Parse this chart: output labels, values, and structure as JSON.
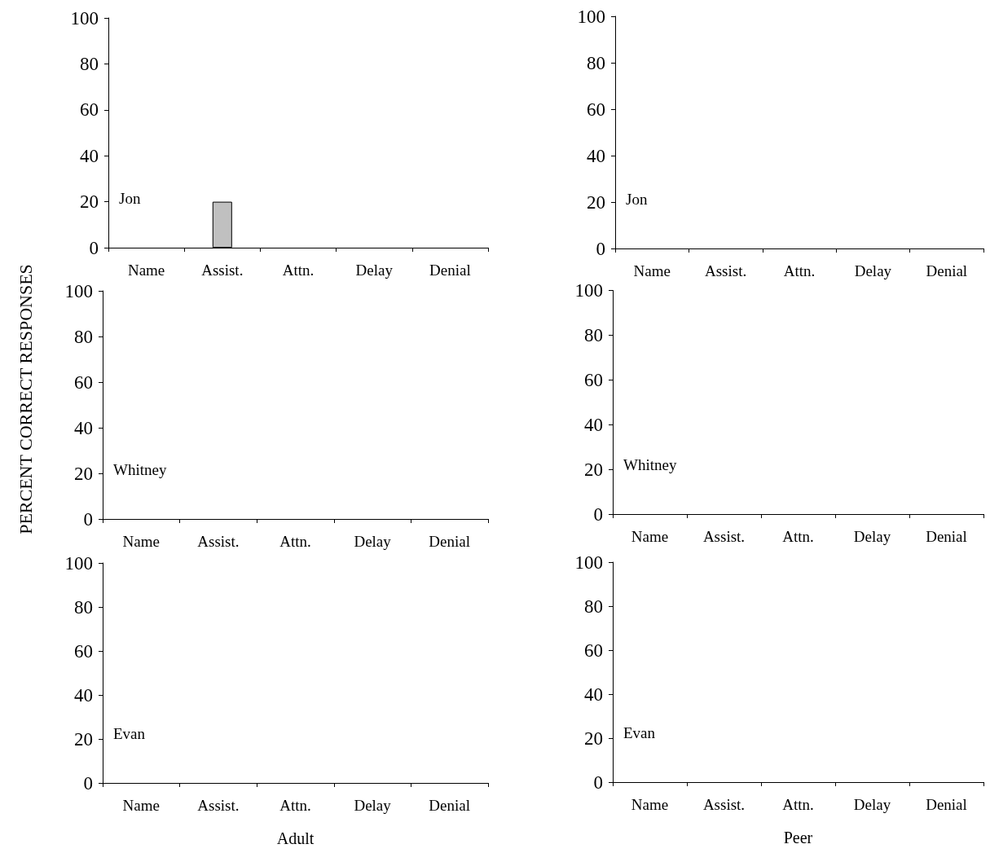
{
  "chart_data": [
    {
      "type": "bar",
      "categories": [
        "Name",
        "Assist.",
        "Attn.",
        "Delay",
        "Denial"
      ],
      "values": [
        0,
        20,
        0,
        0,
        0
      ],
      "color": "#c0c0c0",
      "ylim": [
        0,
        100
      ],
      "yticks": [
        0,
        20,
        40,
        60,
        80,
        100
      ],
      "annotations": [
        "Jon"
      ]
    },
    {
      "type": "bar",
      "categories": [
        "Name",
        "Assist.",
        "Attn.",
        "Delay",
        "Denial"
      ],
      "values": [
        0,
        0,
        0,
        0,
        0
      ],
      "color": "#c0c0c0",
      "ylim": [
        0,
        100
      ],
      "yticks": [
        0,
        20,
        40,
        60,
        80,
        100
      ],
      "annotations": [
        "Jon"
      ]
    },
    {
      "type": "bar",
      "categories": [
        "Name",
        "Assist.",
        "Attn.",
        "Delay",
        "Denial"
      ],
      "values": [
        0,
        0,
        0,
        0,
        0
      ],
      "color": "#c0c0c0",
      "ylim": [
        0,
        100
      ],
      "yticks": [
        0,
        20,
        40,
        60,
        80,
        100
      ],
      "annotations": [
        "Whitney"
      ],
      "ylabel": "PERCENT CORRECT RESPONSES"
    },
    {
      "type": "bar",
      "categories": [
        "Name",
        "Assist.",
        "Attn.",
        "Delay",
        "Denial"
      ],
      "values": [
        0,
        0,
        0,
        0,
        0
      ],
      "color": "#c0c0c0",
      "ylim": [
        0,
        100
      ],
      "yticks": [
        0,
        20,
        40,
        60,
        80,
        100
      ],
      "annotations": [
        "Whitney"
      ]
    },
    {
      "type": "bar",
      "categories": [
        "Name",
        "Assist.",
        "Attn.",
        "Delay",
        "Denial"
      ],
      "values": [
        0,
        0,
        0,
        0,
        0
      ],
      "color": "#c0c0c0",
      "ylim": [
        0,
        100
      ],
      "yticks": [
        0,
        20,
        40,
        60,
        80,
        100
      ],
      "annotations": [
        "Evan"
      ],
      "xlabel": "Adult"
    },
    {
      "type": "bar",
      "categories": [
        "Name",
        "Assist.",
        "Attn.",
        "Delay",
        "Denial"
      ],
      "values": [
        0,
        0,
        0,
        0,
        0
      ],
      "color": "#c0c0c0",
      "ylim": [
        0,
        100
      ],
      "yticks": [
        0,
        20,
        40,
        60,
        80,
        100
      ],
      "annotations": [
        "Evan"
      ],
      "xlabel": "Peer"
    }
  ]
}
